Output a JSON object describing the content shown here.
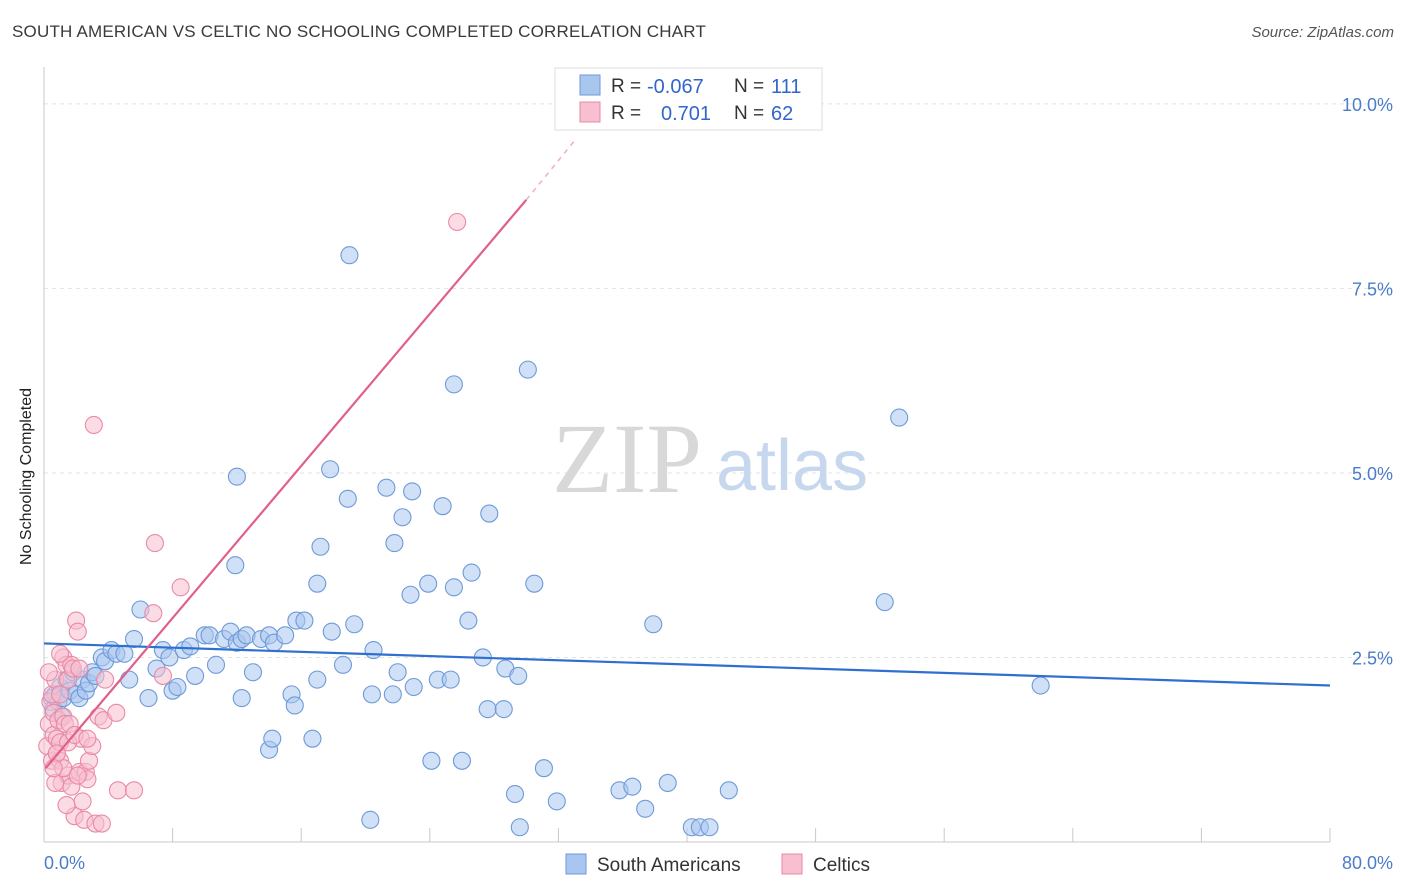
{
  "header": {
    "title": "SOUTH AMERICAN VS CELTIC NO SCHOOLING COMPLETED CORRELATION CHART",
    "source": "Source: ZipAtlas.com"
  },
  "watermark": {
    "zip": "ZIP",
    "atlas": "atlas"
  },
  "legend_top": {
    "r_label": "R =",
    "n_label": "N =",
    "rows": [
      {
        "r": "-0.067",
        "n": "111",
        "color": "#a9c6ef",
        "stroke": "#6e9ad8"
      },
      {
        "r": "0.701",
        "n": "62",
        "color": "#f7bfd0",
        "stroke": "#e98aa6"
      }
    ]
  },
  "legend_bottom": [
    {
      "label": "South Americans",
      "color": "#a9c6ef",
      "stroke": "#6e9ad8"
    },
    {
      "label": "Celtics",
      "color": "#f7bfd0",
      "stroke": "#e98aa6"
    }
  ],
  "chart_data": {
    "type": "scatter",
    "title": "SOUTH AMERICAN VS CELTIC NO SCHOOLING COMPLETED CORRELATION CHART",
    "xlabel": "",
    "ylabel": "No Schooling Completed",
    "xlim": [
      0,
      80
    ],
    "ylim": [
      0,
      10.5
    ],
    "x_tick_labels": [
      "0.0%",
      "80.0%"
    ],
    "y_ticks": [
      2.5,
      5.0,
      7.5,
      10.0
    ],
    "y_tick_labels": [
      "2.5%",
      "5.0%",
      "7.5%",
      "10.0%"
    ],
    "grid": true,
    "legend_position": "top-center",
    "series": [
      {
        "name": "South Americans",
        "color": "#6e9ad8",
        "fill": "#a9c6ef",
        "trend": {
          "x": [
            0,
            80
          ],
          "y": [
            2.69,
            2.12
          ],
          "color": "#2f6fd0"
        },
        "points": [
          [
            0.5,
            1.95
          ],
          [
            0.6,
            1.8
          ],
          [
            0.7,
            2.0
          ],
          [
            0.9,
            1.9
          ],
          [
            1.0,
            2.1
          ],
          [
            1.1,
            1.7
          ],
          [
            1.2,
            1.95
          ],
          [
            1.4,
            2.2
          ],
          [
            1.6,
            2.05
          ],
          [
            1.8,
            2.3
          ],
          [
            2.0,
            2.0
          ],
          [
            2.2,
            1.95
          ],
          [
            2.4,
            2.2
          ],
          [
            2.6,
            2.05
          ],
          [
            2.8,
            2.15
          ],
          [
            3.0,
            2.3
          ],
          [
            3.2,
            2.25
          ],
          [
            3.6,
            2.5
          ],
          [
            3.8,
            2.45
          ],
          [
            4.2,
            2.6
          ],
          [
            4.5,
            2.55
          ],
          [
            5.0,
            2.55
          ],
          [
            5.3,
            2.2
          ],
          [
            5.6,
            2.75
          ],
          [
            6.0,
            3.15
          ],
          [
            6.5,
            1.95
          ],
          [
            7.0,
            2.35
          ],
          [
            7.4,
            2.6
          ],
          [
            7.8,
            2.5
          ],
          [
            8.0,
            2.05
          ],
          [
            8.3,
            2.1
          ],
          [
            8.7,
            2.6
          ],
          [
            9.1,
            2.65
          ],
          [
            9.4,
            2.25
          ],
          [
            10.0,
            2.8
          ],
          [
            10.3,
            2.8
          ],
          [
            10.7,
            2.4
          ],
          [
            11.2,
            2.75
          ],
          [
            11.6,
            2.85
          ],
          [
            12.0,
            2.7
          ],
          [
            12.3,
            2.75
          ],
          [
            12.6,
            2.8
          ],
          [
            13.0,
            2.3
          ],
          [
            13.5,
            2.75
          ],
          [
            14.0,
            2.8
          ],
          [
            14.3,
            2.7
          ],
          [
            15.0,
            2.8
          ],
          [
            15.7,
            3.0
          ],
          [
            16.2,
            3.0
          ],
          [
            17.0,
            2.2
          ],
          [
            17.9,
            2.85
          ],
          [
            18.6,
            2.4
          ],
          [
            19.3,
            2.95
          ],
          [
            20.5,
            2.6
          ],
          [
            21.7,
            2.0
          ],
          [
            22.0,
            2.3
          ],
          [
            23.0,
            2.1
          ],
          [
            24.5,
            2.2
          ],
          [
            25.3,
            2.2
          ],
          [
            27.3,
            2.5
          ],
          [
            28.7,
            2.35
          ],
          [
            29.5,
            2.25
          ],
          [
            15.4,
            2.0
          ],
          [
            15.6,
            1.85
          ],
          [
            12.3,
            1.95
          ],
          [
            16.7,
            1.4
          ],
          [
            14.0,
            1.25
          ],
          [
            14.2,
            1.4
          ],
          [
            20.4,
            2.0
          ],
          [
            12.0,
            4.95
          ],
          [
            11.9,
            3.75
          ],
          [
            17.8,
            5.05
          ],
          [
            18.9,
            4.65
          ],
          [
            17.2,
            4.0
          ],
          [
            17.0,
            3.5
          ],
          [
            21.3,
            4.8
          ],
          [
            22.9,
            4.75
          ],
          [
            24.8,
            4.55
          ],
          [
            27.7,
            4.45
          ],
          [
            22.3,
            4.4
          ],
          [
            21.8,
            4.05
          ],
          [
            22.8,
            3.35
          ],
          [
            23.9,
            3.5
          ],
          [
            25.5,
            3.45
          ],
          [
            26.6,
            3.65
          ],
          [
            26.4,
            3.0
          ],
          [
            30.5,
            3.5
          ],
          [
            37.9,
            2.95
          ],
          [
            27.6,
            1.8
          ],
          [
            28.6,
            1.8
          ],
          [
            24.1,
            1.1
          ],
          [
            26.0,
            1.1
          ],
          [
            31.1,
            1.0
          ],
          [
            29.3,
            0.65
          ],
          [
            31.9,
            0.55
          ],
          [
            35.8,
            0.7
          ],
          [
            36.6,
            0.75
          ],
          [
            37.4,
            0.45
          ],
          [
            38.8,
            0.8
          ],
          [
            42.6,
            0.7
          ],
          [
            40.3,
            0.2
          ],
          [
            40.8,
            0.2
          ],
          [
            41.4,
            0.2
          ],
          [
            29.6,
            0.2
          ],
          [
            20.3,
            0.3
          ],
          [
            25.5,
            6.2
          ],
          [
            30.1,
            6.4
          ],
          [
            19.0,
            7.95
          ],
          [
            53.2,
            5.75
          ],
          [
            52.3,
            3.25
          ],
          [
            62.0,
            2.12
          ]
        ]
      },
      {
        "name": "Celtics",
        "color": "#e98aa6",
        "fill": "#f7bfd0",
        "trend": {
          "x": [
            0.1,
            30.0
          ],
          "y": [
            1.0,
            8.7
          ],
          "dash_to": [
            33.0,
            9.5
          ],
          "color": "#e0608c"
        },
        "points": [
          [
            0.2,
            1.3
          ],
          [
            0.3,
            1.6
          ],
          [
            0.4,
            1.9
          ],
          [
            0.5,
            2.0
          ],
          [
            0.5,
            1.1
          ],
          [
            0.6,
            1.75
          ],
          [
            0.6,
            1.45
          ],
          [
            0.7,
            2.2
          ],
          [
            0.8,
            1.2
          ],
          [
            0.8,
            1.4
          ],
          [
            0.9,
            1.65
          ],
          [
            1.0,
            2.0
          ],
          [
            1.0,
            1.1
          ],
          [
            1.1,
            0.8
          ],
          [
            1.2,
            2.5
          ],
          [
            1.2,
            1.7
          ],
          [
            1.3,
            1.6
          ],
          [
            1.4,
            2.4
          ],
          [
            1.5,
            2.2
          ],
          [
            1.5,
            0.9
          ],
          [
            1.6,
            1.6
          ],
          [
            1.7,
            2.4
          ],
          [
            1.7,
            0.75
          ],
          [
            1.8,
            2.35
          ],
          [
            1.9,
            0.35
          ],
          [
            2.0,
            3.0
          ],
          [
            2.1,
            2.85
          ],
          [
            2.2,
            0.95
          ],
          [
            2.3,
            1.4
          ],
          [
            2.4,
            0.55
          ],
          [
            2.5,
            0.3
          ],
          [
            2.6,
            0.95
          ],
          [
            2.7,
            0.85
          ],
          [
            2.8,
            1.1
          ],
          [
            3.0,
            1.3
          ],
          [
            3.2,
            0.25
          ],
          [
            3.4,
            1.7
          ],
          [
            3.6,
            0.25
          ],
          [
            3.7,
            1.65
          ],
          [
            3.8,
            2.2
          ],
          [
            4.5,
            1.75
          ],
          [
            4.6,
            0.7
          ],
          [
            5.6,
            0.7
          ],
          [
            6.8,
            3.1
          ],
          [
            7.4,
            2.25
          ],
          [
            8.5,
            3.45
          ],
          [
            6.9,
            4.05
          ],
          [
            1.0,
            1.35
          ],
          [
            1.2,
            1.0
          ],
          [
            0.7,
            0.8
          ],
          [
            1.5,
            1.35
          ],
          [
            1.9,
            1.45
          ],
          [
            2.1,
            0.9
          ],
          [
            2.7,
            1.4
          ],
          [
            0.3,
            2.3
          ],
          [
            3.1,
            5.65
          ],
          [
            25.7,
            8.4
          ],
          [
            0.8,
            1.2
          ],
          [
            1.4,
            0.5
          ],
          [
            2.2,
            2.35
          ],
          [
            1.0,
            2.55
          ],
          [
            0.6,
            1.0
          ]
        ]
      }
    ]
  }
}
